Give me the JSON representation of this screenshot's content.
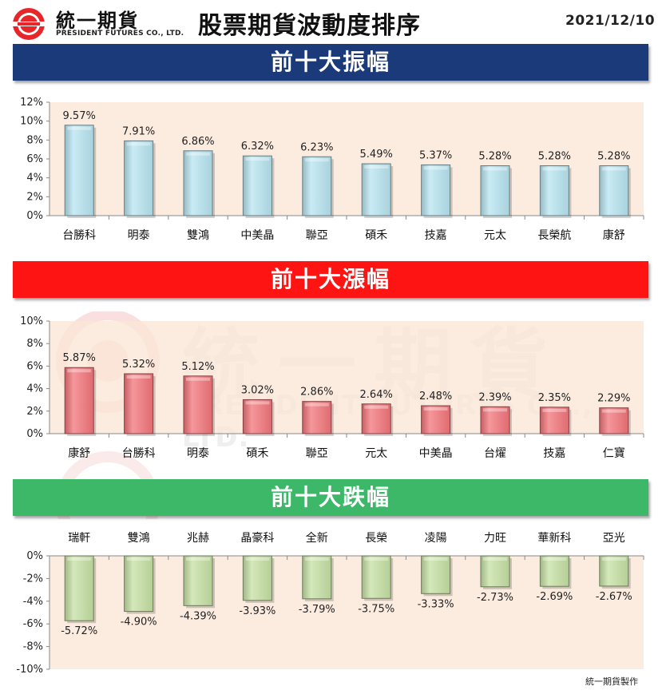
{
  "header": {
    "company_cn": "統一期貨",
    "company_en": "PRESIDENT FUTURES CO., LTD.",
    "title": "股票期貨波動度排序",
    "date": "2021/12/10"
  },
  "footer": {
    "credit": "統一期貨製作"
  },
  "watermark": {
    "cn": "統一期貨",
    "en": "PRESIDENT FUTURES CO., LTD."
  },
  "colors": {
    "brand_red": "#e8262a",
    "banner1": "#1b3a7a",
    "banner2": "#ff1414",
    "banner3": "#3cb868",
    "plot_bg": "#fbe5d6"
  },
  "chart_data": [
    {
      "type": "bar",
      "title": "前十大振幅",
      "categories": [
        "台勝科",
        "明泰",
        "雙鴻",
        "中美晶",
        "聯亞",
        "碩禾",
        "技嘉",
        "元太",
        "長榮航",
        "康舒"
      ],
      "values": [
        9.57,
        7.91,
        6.86,
        6.32,
        6.23,
        5.49,
        5.37,
        5.28,
        5.28,
        5.28
      ],
      "data_labels": [
        "9.57%",
        "7.91%",
        "6.86%",
        "6.32%",
        "6.23%",
        "5.49%",
        "5.37%",
        "5.28%",
        "5.28%",
        "5.28%"
      ],
      "ylim": [
        0,
        12
      ],
      "yticks": [
        0,
        2,
        4,
        6,
        8,
        10,
        12
      ],
      "ytick_labels": [
        "0%",
        "2%",
        "4%",
        "6%",
        "8%",
        "10%",
        "12%"
      ],
      "bar_color": "#b7e4f0",
      "grid": false
    },
    {
      "type": "bar",
      "title": "前十大漲幅",
      "categories": [
        "康舒",
        "台勝科",
        "明泰",
        "碩禾",
        "聯亞",
        "元太",
        "中美晶",
        "台燿",
        "技嘉",
        "仁寶"
      ],
      "values": [
        5.87,
        5.32,
        5.12,
        3.02,
        2.86,
        2.64,
        2.48,
        2.39,
        2.35,
        2.29
      ],
      "data_labels": [
        "5.87%",
        "5.32%",
        "5.12%",
        "3.02%",
        "2.86%",
        "2.64%",
        "2.48%",
        "2.39%",
        "2.35%",
        "2.29%"
      ],
      "ylim": [
        0,
        10
      ],
      "yticks": [
        0,
        2,
        4,
        6,
        8,
        10
      ],
      "ytick_labels": [
        "0%",
        "2%",
        "4%",
        "6%",
        "8%",
        "10%"
      ],
      "bar_color": "#f2747a",
      "grid": false
    },
    {
      "type": "bar",
      "title": "前十大跌幅",
      "categories": [
        "瑞軒",
        "雙鴻",
        "兆赫",
        "晶豪科",
        "全新",
        "長榮",
        "凌陽",
        "力旺",
        "華新科",
        "亞光"
      ],
      "values": [
        -5.72,
        -4.9,
        -4.39,
        -3.93,
        -3.79,
        -3.75,
        -3.33,
        -2.73,
        -2.69,
        -2.67
      ],
      "data_labels": [
        "-5.72%",
        "-4.90%",
        "-4.39%",
        "-3.93%",
        "-3.79%",
        "-3.75%",
        "-3.33%",
        "-2.73%",
        "-2.69%",
        "-2.67%"
      ],
      "ylim": [
        -10,
        0
      ],
      "yticks": [
        0,
        -2,
        -4,
        -6,
        -8,
        -10
      ],
      "ytick_labels": [
        "0%",
        "-2%",
        "-4%",
        "-6%",
        "-8%",
        "-10%"
      ],
      "bar_color": "#c5e0a3",
      "grid": false
    }
  ]
}
